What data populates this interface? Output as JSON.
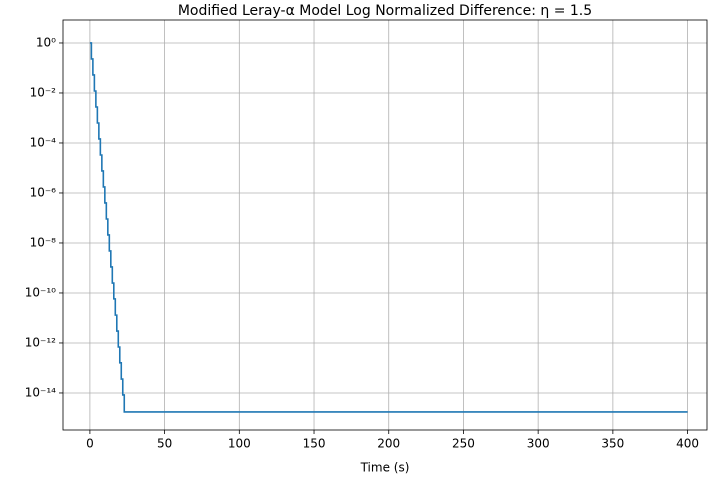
{
  "chart_data": {
    "type": "line",
    "title": "Modified Leray-α Model Log Normalized Difference: η = 1.5",
    "xlabel": "Time (s)",
    "log_y": true,
    "grid": true,
    "xlim": [
      -18,
      413
    ],
    "ylim": [
      8.3,
      3.3e-16
    ],
    "xticks": [
      0,
      50,
      100,
      150,
      200,
      250,
      300,
      350,
      400
    ],
    "yticks": [
      {
        "value": 1,
        "label": "10⁰"
      },
      {
        "value": 0.01,
        "label": "10⁻²"
      },
      {
        "value": 0.0001,
        "label": "10⁻⁴"
      },
      {
        "value": 1e-06,
        "label": "10⁻⁶"
      },
      {
        "value": 1e-08,
        "label": "10⁻⁸"
      },
      {
        "value": 1e-10,
        "label": "10⁻¹⁰"
      },
      {
        "value": 1e-12,
        "label": "10⁻¹²"
      },
      {
        "value": 1e-14,
        "label": "10⁻¹⁴"
      }
    ],
    "series": [
      {
        "name": "difference",
        "color": "#1f77b4",
        "x": [
          0,
          1,
          1,
          2,
          2,
          3,
          3,
          4,
          4,
          5,
          5,
          6,
          6,
          7,
          7,
          8,
          8,
          9,
          9,
          10,
          10,
          11,
          11,
          12,
          12,
          13,
          13,
          14,
          14,
          15,
          15,
          16,
          16,
          17,
          17,
          18,
          18,
          19,
          19,
          20,
          20,
          21,
          21,
          22,
          22,
          23,
          23,
          400
        ],
        "values": [
          1,
          1,
          0.229,
          0.229,
          0.0525,
          0.0525,
          0.012,
          0.012,
          0.00275,
          0.00275,
          0.00063,
          0.00063,
          0.000145,
          0.000145,
          3.3e-05,
          3.3e-05,
          7.6e-06,
          7.6e-06,
          1.74e-06,
          1.74e-06,
          4e-07,
          4e-07,
          9.1e-08,
          9.1e-08,
          2.1e-08,
          2.1e-08,
          4.8e-09,
          4.8e-09,
          1.1e-09,
          1.1e-09,
          2.5e-10,
          2.5e-10,
          5.8e-11,
          5.8e-11,
          1.3e-11,
          1.3e-11,
          3e-12,
          3e-12,
          6.9e-13,
          6.9e-13,
          1.6e-13,
          1.6e-13,
          3.6e-14,
          3.6e-14,
          8.3e-15,
          8.3e-15,
          1.74e-15,
          1.74e-15
        ]
      }
    ]
  }
}
